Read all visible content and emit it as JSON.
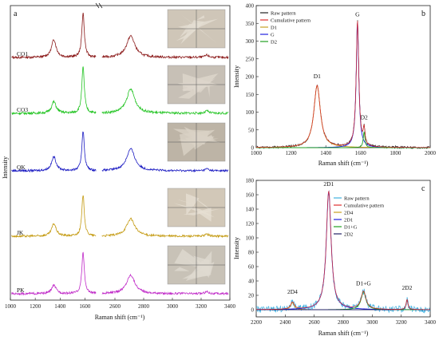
{
  "chart_data": [
    {
      "panel_label": "a",
      "type": "line",
      "xlabel": "Raman shift (cm⁻¹)",
      "ylabel": "Intensity",
      "x_ticks": [
        "1000",
        "1200",
        "1400",
        "1600",
        "2600",
        "2800",
        "3000",
        "3200",
        "3400"
      ],
      "x_break": [
        1700,
        2500
      ],
      "series": [
        {
          "name": "CO1",
          "color": "#8b1a1a",
          "peaks": [
            [
              1350,
              0.4
            ],
            [
              1585,
              1.0
            ],
            [
              2710,
              0.48
            ],
            [
              3240,
              0.05
            ]
          ]
        },
        {
          "name": "CO3",
          "color": "#22c422",
          "peaks": [
            [
              1350,
              0.25
            ],
            [
              1585,
              1.0
            ],
            [
              2710,
              0.52
            ],
            [
              3240,
              0.05
            ]
          ]
        },
        {
          "name": "QK",
          "color": "#1a1ac2",
          "peaks": [
            [
              1350,
              0.35
            ],
            [
              1585,
              1.0
            ],
            [
              2710,
              0.55
            ],
            [
              3240,
              0.05
            ]
          ]
        },
        {
          "name": "JK",
          "color": "#c49a10",
          "peaks": [
            [
              1350,
              0.3
            ],
            [
              1585,
              1.0
            ],
            [
              2710,
              0.42
            ],
            [
              3240,
              0.05
            ]
          ]
        },
        {
          "name": "PK",
          "color": "#c02ac8",
          "peaks": [
            [
              1350,
              0.2
            ],
            [
              1585,
              1.0
            ],
            [
              2710,
              0.45
            ],
            [
              3240,
              0.05
            ]
          ]
        }
      ]
    },
    {
      "panel_label": "b",
      "type": "line",
      "xlabel": "Raman shift (cm⁻¹)",
      "ylabel": "Intensity",
      "xlim": [
        1000,
        2000
      ],
      "ylim": [
        0,
        400
      ],
      "x_ticks": [
        1000,
        1200,
        1400,
        1600,
        1800,
        2000
      ],
      "y_ticks": [
        0,
        50,
        100,
        150,
        200,
        250,
        300,
        350,
        400
      ],
      "legend": [
        "Raw pattern",
        "Cumulative pattern",
        "D1",
        "G",
        "D2"
      ],
      "legend_colors": [
        "#222222",
        "#e03030",
        "#c8a020",
        "#2020e0",
        "#20a020"
      ],
      "annotations": [
        {
          "text": "D1",
          "x": 1350,
          "y": 195
        },
        {
          "text": "G",
          "x": 1582,
          "y": 370
        },
        {
          "text": "D2",
          "x": 1620,
          "y": 80
        }
      ],
      "series": [
        {
          "name": "D1",
          "color": "#c8a020",
          "peaks": [
            [
              1350,
              175,
              45
            ]
          ]
        },
        {
          "name": "G",
          "color": "#2020e0",
          "peaks": [
            [
              1582,
              355,
              18
            ]
          ]
        },
        {
          "name": "D2",
          "color": "#20a020",
          "peaks": [
            [
              1620,
              45,
              12
            ]
          ]
        }
      ]
    },
    {
      "panel_label": "c",
      "type": "line",
      "xlabel": "Raman shift (cm⁻¹)",
      "ylabel": "Intensity",
      "xlim": [
        2200,
        3400
      ],
      "ylim": [
        -10,
        180
      ],
      "x_ticks": [
        2200,
        2400,
        2600,
        2800,
        3000,
        3200,
        3400
      ],
      "y_ticks": [
        0,
        20,
        40,
        60,
        80,
        100,
        120,
        140,
        160,
        180
      ],
      "legend": [
        "Raw pattern",
        "Cumulative pattern",
        "2D4",
        "2D1",
        "D1+G",
        "2D2"
      ],
      "legend_colors": [
        "#40b0e0",
        "#e03030",
        "#c8a020",
        "#2020e0",
        "#20a020",
        "#222266"
      ],
      "annotations": [
        {
          "text": "2D1",
          "x": 2700,
          "y": 172
        },
        {
          "text": "2D4",
          "x": 2450,
          "y": 22
        },
        {
          "text": "D1+G",
          "x": 2940,
          "y": 34
        },
        {
          "text": "2D2",
          "x": 3240,
          "y": 28
        }
      ],
      "series": [
        {
          "name": "2D4",
          "color": "#c8a020",
          "peaks": [
            [
              2450,
              10,
              30
            ]
          ]
        },
        {
          "name": "2D1",
          "color": "#2020e0",
          "peaks": [
            [
              2700,
              165,
              40
            ]
          ]
        },
        {
          "name": "D1+G",
          "color": "#20a020",
          "peaks": [
            [
              2940,
              25,
              40
            ]
          ]
        },
        {
          "name": "2D2",
          "color": "#222266",
          "peaks": [
            [
              3240,
              14,
              15
            ]
          ]
        }
      ]
    }
  ]
}
